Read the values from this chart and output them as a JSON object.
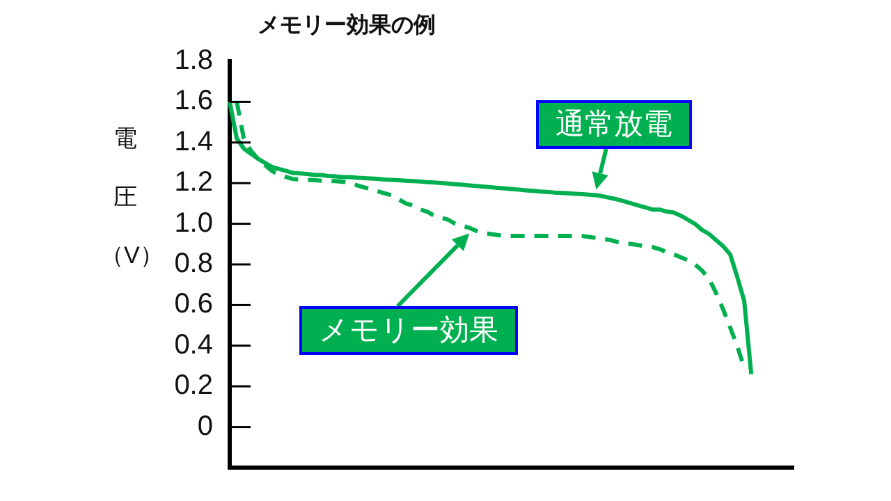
{
  "chart_data": {
    "type": "line",
    "title": "メモリー効果の例",
    "ylabel": "電圧（V）",
    "categories": [
      null,
      null,
      null,
      null,
      null,
      null,
      null,
      null,
      null,
      null,
      null,
      null,
      null,
      null,
      null,
      null,
      null,
      null,
      null,
      null,
      null,
      null,
      null,
      null,
      null,
      null,
      null,
      null,
      null,
      null,
      null,
      null,
      null,
      null,
      null,
      null,
      null,
      null,
      null,
      null,
      null,
      null,
      null,
      null,
      null,
      null,
      null,
      null,
      null,
      null,
      null,
      null,
      null,
      null,
      null,
      null,
      null,
      null,
      null,
      null,
      null,
      null,
      null,
      null,
      null,
      null,
      null,
      null,
      null,
      null,
      null,
      null,
      null,
      null,
      null,
      null,
      null,
      null,
      null,
      null,
      null
    ],
    "series": [
      {
        "name": "通常放電",
        "color": "#00b050",
        "line_style": "solid",
        "values": [
          1.6,
          1.42,
          1.37,
          1.345,
          1.32,
          1.3,
          1.28,
          1.27,
          1.26,
          1.25,
          1.248,
          1.245,
          1.24,
          1.24,
          1.235,
          1.233,
          1.23,
          1.23,
          1.227,
          1.225,
          1.223,
          1.221,
          1.218,
          1.216,
          1.214,
          1.212,
          1.21,
          1.208,
          1.205,
          1.203,
          1.201,
          1.198,
          1.195,
          1.192,
          1.189,
          1.186,
          1.183,
          1.18,
          1.177,
          1.174,
          1.171,
          1.168,
          1.165,
          1.162,
          1.159,
          1.157,
          1.154,
          1.152,
          1.15,
          1.148,
          1.146,
          1.143,
          1.141,
          1.135,
          1.127,
          1.12,
          1.11,
          1.1,
          1.09,
          1.08,
          1.07,
          1.07,
          1.06,
          1.055,
          1.04,
          1.02,
          1.0,
          0.97,
          0.95,
          0.92,
          0.89,
          0.85,
          0.74,
          0.62,
          0.26,
          null,
          null,
          null,
          null,
          null,
          null
        ]
      },
      {
        "name": "メモリー効果",
        "color": "#00b050",
        "line_style": "dashed",
        "values": [
          null,
          1.6,
          1.42,
          1.36,
          1.32,
          1.29,
          1.26,
          1.24,
          1.23,
          1.22,
          1.218,
          1.216,
          1.214,
          1.212,
          1.21,
          1.21,
          1.207,
          1.2,
          1.19,
          1.18,
          1.17,
          1.16,
          1.15,
          1.14,
          1.12,
          1.1,
          1.09,
          1.07,
          1.06,
          1.04,
          1.03,
          1.02,
          1.0,
          0.99,
          0.98,
          0.965,
          0.955,
          0.95,
          0.945,
          0.94,
          0.94,
          0.94,
          0.94,
          0.94,
          0.94,
          0.94,
          0.94,
          0.94,
          0.94,
          0.94,
          0.94,
          0.935,
          0.93,
          0.925,
          0.92,
          0.91,
          0.905,
          0.9,
          0.895,
          0.89,
          0.885,
          0.875,
          0.86,
          0.85,
          0.835,
          0.82,
          0.8,
          0.77,
          0.73,
          0.66,
          0.58,
          0.49,
          0.4,
          0.29,
          null,
          null,
          null,
          null,
          null,
          null,
          null
        ]
      }
    ],
    "ylim": [
      -0.2,
      1.8
    ],
    "yticks": [
      0,
      0.2,
      0.4,
      0.6,
      0.8,
      {
        "value": 1,
        "label": "1.0"
      },
      1.2,
      1.4,
      1.6,
      1.8
    ],
    "tick_labels": "y",
    "marker": "none"
  }
}
